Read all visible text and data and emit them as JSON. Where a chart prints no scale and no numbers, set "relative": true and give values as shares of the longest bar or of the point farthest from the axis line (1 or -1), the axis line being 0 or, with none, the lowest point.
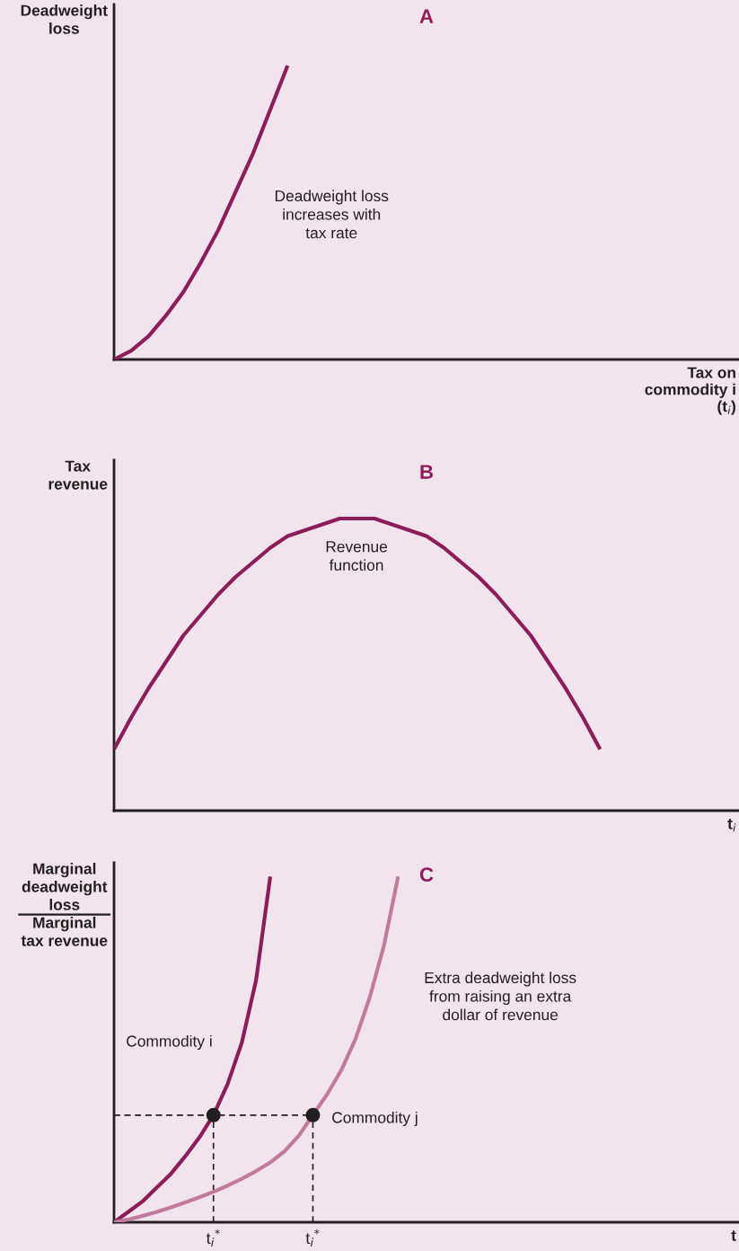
{
  "chart_data": [
    {
      "type": "line",
      "title": "A",
      "ylabel": "Deadweight\nloss",
      "xlabel": "Tax on\ncommodity i\n(t$_{i}$)",
      "relative": true,
      "tick_labels": false,
      "categories": [
        null,
        null,
        null,
        null,
        null,
        null,
        null,
        null,
        null,
        null,
        null,
        null,
        null,
        null,
        null,
        null,
        null,
        null,
        null,
        null,
        null,
        null,
        null,
        null,
        null,
        null,
        null,
        null,
        null,
        null,
        null,
        null,
        null,
        null,
        null,
        null,
        null
      ],
      "series": [
        {
          "color": "#8c1d5a",
          "values": [
            0,
            0.03,
            0.08,
            0.15,
            0.23,
            0.33,
            0.44,
            0.57,
            0.7,
            0.85,
            1.0,
            null,
            null,
            null,
            null,
            null,
            null,
            null,
            null,
            null,
            null,
            null,
            null,
            null,
            null,
            null,
            null,
            null,
            null,
            null,
            null,
            null,
            null,
            null,
            null,
            null,
            null
          ]
        }
      ],
      "annotations": [
        "Deadweight loss\nincreases with\ntax rate"
      ]
    },
    {
      "type": "line",
      "title": "B",
      "ylabel": "Tax\nrevenue",
      "xlabel": "t$_{i}$",
      "relative": true,
      "tick_labels": false,
      "categories": [
        null,
        null,
        null,
        null,
        null,
        null,
        null,
        null,
        null,
        null,
        null,
        null,
        null,
        null,
        null,
        null,
        null,
        null,
        null,
        null,
        null,
        null,
        null,
        null,
        null,
        null,
        null,
        null,
        null,
        null,
        null,
        null,
        null,
        null,
        null,
        null,
        null
      ],
      "series": [
        {
          "color": "#8c1d5a",
          "values": [
            0.21,
            0.32,
            0.42,
            0.51,
            0.6,
            0.67,
            0.74,
            0.8,
            0.85,
            0.9,
            0.94,
            0.96,
            0.98,
            1.0,
            1.0,
            1.0,
            0.98,
            0.96,
            0.94,
            0.9,
            0.85,
            0.8,
            0.74,
            0.67,
            0.6,
            0.51,
            0.42,
            0.32,
            0.21,
            null,
            null,
            null,
            null,
            null,
            null,
            null,
            null
          ]
        }
      ],
      "annotations": [
        "Revenue\nfunction"
      ]
    },
    {
      "type": "line",
      "title": "C",
      "ylabel": "Marginal\ndeadweight\nloss\nMarginal\ntax revenue",
      "xlabel": "t",
      "relative": true,
      "tick_labels": "x",
      "categories": [
        null,
        null,
        null,
        null,
        null,
        null,
        null,
        "t$_{i}$$^{*}$",
        null,
        null,
        null,
        null,
        null,
        null,
        "t$_{i}$$^{*}$",
        null,
        null,
        null,
        null,
        null,
        null,
        null,
        null,
        null,
        null,
        null,
        null,
        null,
        null,
        null,
        null,
        null,
        null,
        null,
        null,
        null,
        null,
        null,
        null,
        null,
        null,
        null,
        null,
        null,
        null
      ],
      "series": [
        {
          "name": "Commodity i",
          "color": "#8c1d5a",
          "values": [
            0,
            0.03,
            0.06,
            0.1,
            0.14,
            0.19,
            0.245,
            0.31,
            0.4,
            0.52,
            0.7,
            1.0,
            null,
            null,
            null,
            null,
            null,
            null,
            null,
            null,
            null,
            null,
            null,
            null,
            null,
            null,
            null,
            null,
            null,
            null,
            null,
            null,
            null,
            null,
            null,
            null,
            null,
            null,
            null,
            null,
            null,
            null,
            null,
            null,
            null
          ]
        },
        {
          "name": "Commodity j",
          "color": "#c27a9c",
          "values": [
            0,
            0.008,
            0.018,
            0.03,
            0.043,
            0.057,
            0.072,
            0.088,
            0.106,
            0.126,
            0.148,
            0.173,
            0.205,
            0.25,
            0.31,
            0.37,
            0.44,
            0.53,
            0.65,
            0.8,
            1.0,
            null,
            null,
            null,
            null,
            null,
            null,
            null,
            null,
            null,
            null,
            null,
            null,
            null,
            null,
            null,
            null,
            null,
            null,
            null,
            null,
            null,
            null,
            null,
            null
          ]
        },
        {
          "type": "scatter",
          "color": "#231f20",
          "marker": "circle",
          "line_style": "dashed",
          "values": [
            null,
            null,
            null,
            null,
            null,
            null,
            null,
            0.31,
            null,
            null,
            null,
            null,
            null,
            null,
            0.31,
            null,
            null,
            null,
            null,
            null,
            null,
            null,
            null,
            null,
            null,
            null,
            null,
            null,
            null,
            null,
            null,
            null,
            null,
            null,
            null,
            null,
            null,
            null,
            null,
            null,
            null,
            null,
            null,
            null,
            null
          ]
        }
      ],
      "annotations": [
        "Extra deadweight loss\nfrom raising an extra\ndollar of revenue"
      ]
    }
  ]
}
